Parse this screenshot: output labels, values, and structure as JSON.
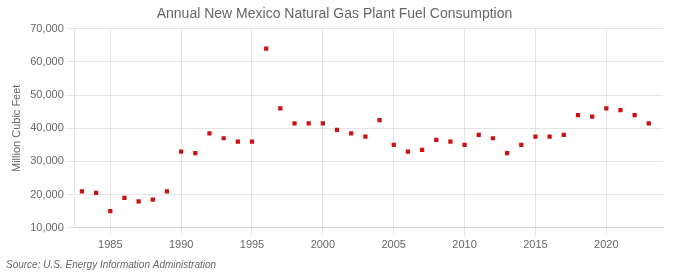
{
  "chart_data": {
    "type": "scatter",
    "title": "Annual New Mexico Natural Gas Plant Fuel Consumption",
    "ylabel": "Million Cubic Feet",
    "annotation": "Source: U.S. Energy Information Administration",
    "x": [
      1983,
      1984,
      1985,
      1986,
      1987,
      1988,
      1989,
      1990,
      1991,
      1992,
      1993,
      1994,
      1995,
      1996,
      1997,
      1998,
      1999,
      2000,
      2001,
      2002,
      2003,
      2004,
      2005,
      2006,
      2007,
      2008,
      2009,
      2010,
      2011,
      2012,
      2013,
      2014,
      2015,
      2016,
      2017,
      2018,
      2019,
      2020,
      2021,
      2022,
      2023
    ],
    "values": [
      21000,
      20500,
      15000,
      19000,
      18000,
      18500,
      21000,
      33000,
      32500,
      38500,
      37000,
      36000,
      36000,
      64000,
      46000,
      41500,
      41500,
      41500,
      39500,
      38500,
      37500,
      42500,
      35000,
      33000,
      33500,
      36500,
      36000,
      35000,
      38000,
      37000,
      32500,
      35000,
      37500,
      37500,
      38000,
      44000,
      43500,
      46000,
      45500,
      44000,
      41500
    ],
    "color": "#cc1111",
    "marker": "square",
    "xlim": [
      1982.5,
      2024
    ],
    "xticks": [
      1985,
      1990,
      1995,
      2000,
      2005,
      2010,
      2015,
      2020
    ],
    "ylim": [
      10000,
      70000
    ],
    "yticks": [
      {
        "value": 10000,
        "label": "10,000"
      },
      {
        "value": 20000,
        "label": "20,000"
      },
      {
        "value": 30000,
        "label": "30,000"
      },
      {
        "value": 40000,
        "label": "40,000"
      },
      {
        "value": 50000,
        "label": "50,000"
      },
      {
        "value": 60000,
        "label": "60,000"
      },
      {
        "value": 70000,
        "label": "70,000"
      }
    ],
    "grid": true
  }
}
